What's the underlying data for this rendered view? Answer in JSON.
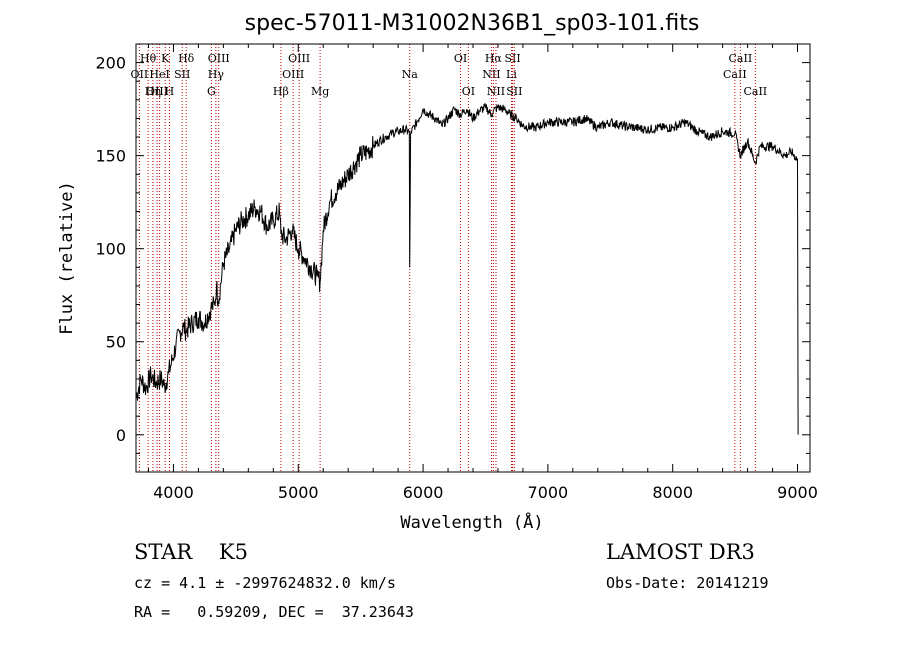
{
  "title": "spec-57011-M31002N36B1_sp03-101.fits",
  "info": {
    "class_line": "STAR    K5",
    "survey": "LAMOST DR3",
    "cz_line": "cz = 4.1 ± -2997624832.0 km/s",
    "obs_date": "Obs-Date: 20141219",
    "radec_line": "RA =   0.59209, DEC =  37.23643"
  },
  "chart_data": {
    "type": "line",
    "xlabel": "Wavelength (Å)",
    "ylabel": "Flux (relative)",
    "xlim": [
      3700,
      9100
    ],
    "ylim": [
      -20,
      210
    ],
    "xticks": [
      4000,
      5000,
      6000,
      7000,
      8000,
      9000
    ],
    "yticks": [
      0,
      50,
      100,
      150,
      200
    ],
    "grid": false,
    "series": [
      {
        "x": [
          3700,
          3740,
          3780,
          3820,
          3860,
          3900,
          3930,
          3960,
          3990,
          4020,
          4050,
          4080,
          4100,
          4150,
          4200,
          4250,
          4300,
          4330,
          4345,
          4360,
          4400,
          4450,
          4500,
          4550,
          4600,
          4650,
          4700,
          4750,
          4800,
          4850,
          4861,
          4900,
          4950,
          5000,
          5050,
          5100,
          5150,
          5175,
          5200,
          5250,
          5300,
          5350,
          5400,
          5450,
          5500,
          5550,
          5600,
          5650,
          5700,
          5750,
          5800,
          5850,
          5890,
          5893,
          5900,
          5950,
          6000,
          6050,
          6100,
          6150,
          6200,
          6250,
          6300,
          6350,
          6400,
          6450,
          6500,
          6550,
          6563,
          6600,
          6650,
          6700,
          6750,
          6800,
          6900,
          7000,
          7100,
          7200,
          7300,
          7400,
          7500,
          7600,
          7700,
          7800,
          7900,
          8000,
          8100,
          8200,
          8300,
          8400,
          8498,
          8542,
          8600,
          8662,
          8700,
          8800,
          8900,
          8950,
          9000,
          9005
        ],
        "y": [
          20,
          30,
          25,
          32,
          28,
          30,
          26,
          33,
          40,
          48,
          55,
          58,
          56,
          60,
          63,
          60,
          68,
          70,
          80,
          72,
          92,
          100,
          110,
          115,
          118,
          122,
          120,
          112,
          115,
          120,
          108,
          105,
          110,
          100,
          95,
          90,
          85,
          82,
          110,
          125,
          130,
          135,
          140,
          145,
          150,
          152,
          155,
          158,
          160,
          162,
          163,
          164,
          163,
          90,
          162,
          168,
          175,
          172,
          170,
          166,
          170,
          175,
          172,
          175,
          170,
          174,
          176,
          172,
          174,
          176,
          175,
          172,
          170,
          166,
          165,
          168,
          168,
          168,
          170,
          165,
          168,
          166,
          165,
          164,
          165,
          165,
          168,
          163,
          160,
          163,
          162,
          150,
          158,
          146,
          155,
          155,
          150,
          152,
          148,
          0
        ]
      }
    ],
    "line_markers": [
      {
        "label": "Hθ",
        "x": 3797,
        "row": 1
      },
      {
        "label": "OII",
        "x": 3727,
        "row": 2
      },
      {
        "label": "OIII",
        "x": 3869,
        "row": 3
      },
      {
        "label": "Hη",
        "x": 3835,
        "row": 3
      },
      {
        "label": "HeI",
        "x": 3889,
        "row": 2
      },
      {
        "label": "K",
        "x": 3934,
        "row": 1
      },
      {
        "label": "H",
        "x": 3968,
        "row": 3
      },
      {
        "label": "SII",
        "x": 4070,
        "row": 2
      },
      {
        "label": "Hδ",
        "x": 4102,
        "row": 1
      },
      {
        "label": "G",
        "x": 4304,
        "row": 3
      },
      {
        "label": "Hγ",
        "x": 4340,
        "row": 2
      },
      {
        "label": "OIII",
        "x": 4363,
        "row": 1
      },
      {
        "label": "Hβ",
        "x": 4861,
        "row": 3
      },
      {
        "label": "OIII",
        "x": 4959,
        "row": 2
      },
      {
        "label": "OIII",
        "x": 5007,
        "row": 1
      },
      {
        "label": "Mg",
        "x": 5175,
        "row": 3
      },
      {
        "label": "Na",
        "x": 5893,
        "row": 2
      },
      {
        "label": "OI",
        "x": 6300,
        "row": 1
      },
      {
        "label": "OI",
        "x": 6363,
        "row": 3
      },
      {
        "label": "NII",
        "x": 6548,
        "row": 2
      },
      {
        "label": "Hα",
        "x": 6563,
        "row": 1
      },
      {
        "label": "NII",
        "x": 6584,
        "row": 3
      },
      {
        "label": "SII",
        "x": 6717,
        "row": 1
      },
      {
        "label": "Li",
        "x": 6708,
        "row": 2
      },
      {
        "label": "SII",
        "x": 6731,
        "row": 3
      },
      {
        "label": "CaII",
        "x": 8498,
        "row": 2
      },
      {
        "label": "CaII",
        "x": 8542,
        "row": 1
      },
      {
        "label": "CaII",
        "x": 8662,
        "row": 3
      }
    ]
  },
  "colors": {
    "line": "#000000",
    "marker": "#c00000"
  }
}
